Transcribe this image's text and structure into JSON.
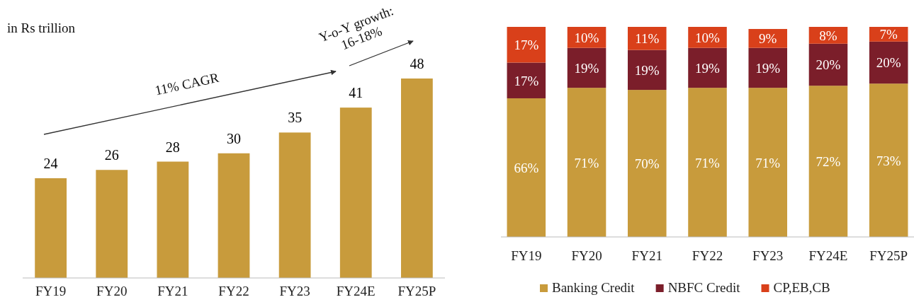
{
  "chart_data": [
    {
      "type": "bar",
      "categories": [
        "FY19",
        "FY20",
        "FY21",
        "FY22",
        "FY23",
        "FY24E",
        "FY25P"
      ],
      "values": [
        24,
        26,
        28,
        30,
        35,
        41,
        48
      ],
      "color": "#c89b3c",
      "data_labels": true,
      "annotations": [
        "in Rs trillion",
        "11% CAGR",
        "Y-o-Y growth:\n16-18%"
      ]
    },
    {
      "type": "bar",
      "stacked": true,
      "categories": [
        "FY19",
        "FY20",
        "FY21",
        "FY22",
        "FY23",
        "FY24E",
        "FY25P"
      ],
      "legend": "bottom",
      "series": [
        {
          "name": "Banking Credit",
          "color": "#c89b3c",
          "values": [
            66,
            71,
            70,
            71,
            71,
            72,
            73
          ],
          "value_labels": [
            "66%",
            "71%",
            "70%",
            "71%",
            "71%",
            "72%",
            "73%"
          ]
        },
        {
          "name": "NBFC Credit",
          "color": "#7b1e2a",
          "values": [
            17,
            19,
            19,
            19,
            19,
            20,
            20
          ],
          "value_labels": [
            "17%",
            "19%",
            "19%",
            "19%",
            "19%",
            "20%",
            "20%"
          ]
        },
        {
          "name": "CP,EB,CB",
          "color": "#d9401a",
          "values": [
            17,
            10,
            11,
            10,
            9,
            8,
            7
          ],
          "value_labels": [
            "17%",
            "10%",
            "11%",
            "10%",
            "9%",
            "8%",
            "7%"
          ]
        }
      ]
    }
  ]
}
